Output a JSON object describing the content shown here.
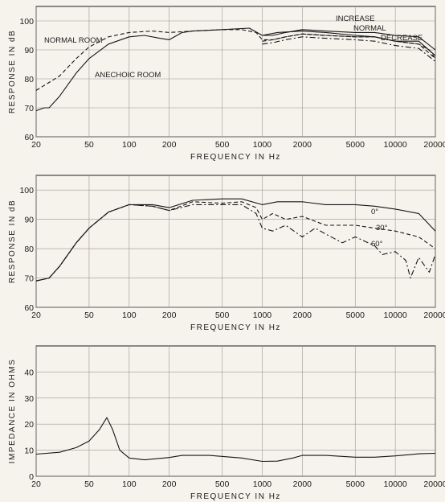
{
  "chart_data": [
    {
      "type": "line",
      "title": "",
      "xlabel": "FREQUENCY  IN  Hz",
      "ylabel": "RESPONSE  IN  dB",
      "xscale": "log",
      "xlim": [
        20,
        20000
      ],
      "ylim": [
        60,
        105
      ],
      "x_ticks": [
        20,
        50,
        100,
        200,
        500,
        1000,
        2000,
        5000,
        10000,
        20000
      ],
      "x_tick_labels": [
        "20",
        "50",
        "100",
        "200",
        "500",
        "1000",
        "2000",
        "5000",
        "10000",
        "20000"
      ],
      "y_ticks": [
        60,
        70,
        80,
        90,
        100
      ],
      "y_tick_labels": [
        "60",
        "70",
        "80",
        "90",
        "100"
      ],
      "grid": true,
      "series": [
        {
          "name": "NORMAL ROOM",
          "style": "dashed",
          "points": [
            [
              20,
              76
            ],
            [
              30,
              81
            ],
            [
              40,
              87
            ],
            [
              50,
              91
            ],
            [
              70,
              94.5
            ],
            [
              100,
              96
            ],
            [
              150,
              96.5
            ],
            [
              200,
              96
            ],
            [
              300,
              96.5
            ],
            [
              500,
              97
            ],
            [
              700,
              97
            ],
            [
              900,
              96
            ],
            [
              1000,
              93.5
            ],
            [
              1200,
              93.5
            ],
            [
              1500,
              94.5
            ],
            [
              2000,
              95.5
            ],
            [
              3000,
              95
            ],
            [
              5000,
              94.5
            ],
            [
              7000,
              94.5
            ],
            [
              10000,
              93
            ],
            [
              15000,
              92
            ],
            [
              18000,
              90
            ],
            [
              20000,
              87
            ]
          ]
        },
        {
          "name": "ANECHOIC ROOM",
          "style": "solid",
          "points": [
            [
              20,
              69
            ],
            [
              23,
              70
            ],
            [
              25,
              70
            ],
            [
              30,
              74
            ],
            [
              40,
              82
            ],
            [
              50,
              87
            ],
            [
              70,
              92
            ],
            [
              100,
              94.5
            ],
            [
              130,
              95
            ],
            [
              170,
              94
            ],
            [
              200,
              93.5
            ],
            [
              250,
              96
            ],
            [
              300,
              96.5
            ],
            [
              500,
              97
            ],
            [
              800,
              97.5
            ],
            [
              1000,
              95
            ],
            [
              1300,
              96
            ],
            [
              2000,
              96.5
            ],
            [
              3000,
              96
            ],
            [
              5000,
              95
            ],
            [
              7000,
              94.5
            ],
            [
              10000,
              93
            ],
            [
              15000,
              93
            ],
            [
              20000,
              88
            ]
          ]
        },
        {
          "name": "INCREASE",
          "style": "solid",
          "points": [
            [
              1000,
              95
            ],
            [
              1200,
              95
            ],
            [
              1500,
              96
            ],
            [
              2000,
              97
            ],
            [
              3000,
              96.5
            ],
            [
              5000,
              96
            ],
            [
              7000,
              96
            ],
            [
              10000,
              95
            ],
            [
              15000,
              94.5
            ],
            [
              20000,
              90
            ]
          ]
        },
        {
          "name": "NORMAL",
          "style": "dashed",
          "points": [
            [
              1000,
              93
            ],
            [
              1200,
              93.5
            ],
            [
              1500,
              94.5
            ],
            [
              2000,
              95.5
            ],
            [
              3000,
              95
            ],
            [
              5000,
              94.5
            ],
            [
              7000,
              94.5
            ],
            [
              10000,
              93
            ],
            [
              15000,
              92
            ],
            [
              20000,
              87
            ]
          ]
        },
        {
          "name": "DECREASE",
          "style": "dashdot",
          "points": [
            [
              1000,
              92
            ],
            [
              1200,
              92.5
            ],
            [
              1500,
              93.5
            ],
            [
              2000,
              94.5
            ],
            [
              3000,
              94
            ],
            [
              5000,
              93.5
            ],
            [
              7000,
              93
            ],
            [
              10000,
              91.5
            ],
            [
              15000,
              90.5
            ],
            [
              20000,
              86
            ]
          ]
        }
      ],
      "annotations": [
        "NORMAL ROOM",
        "ANECHOIC ROOM",
        "INCREASE",
        "NORMAL",
        "DECREASE"
      ]
    },
    {
      "type": "line",
      "title": "",
      "xlabel": "FREQUENCY  IN  Hz",
      "ylabel": "RESPONSE  IN  dB",
      "xscale": "log",
      "xlim": [
        20,
        20000
      ],
      "ylim": [
        60,
        105
      ],
      "x_ticks": [
        20,
        50,
        100,
        200,
        500,
        1000,
        2000,
        5000,
        10000,
        20000
      ],
      "x_tick_labels": [
        "20",
        "50",
        "100",
        "200",
        "500",
        "1000",
        "2000",
        "5000",
        "10000",
        "20000"
      ],
      "y_ticks": [
        60,
        70,
        80,
        90,
        100
      ],
      "y_tick_labels": [
        "60",
        "70",
        "80",
        "90",
        "100"
      ],
      "grid": true,
      "series": [
        {
          "name": "0°",
          "style": "solid",
          "points": [
            [
              20,
              69
            ],
            [
              25,
              70
            ],
            [
              30,
              74
            ],
            [
              40,
              82
            ],
            [
              50,
              87
            ],
            [
              70,
              92.5
            ],
            [
              100,
              95
            ],
            [
              150,
              95
            ],
            [
              200,
              94
            ],
            [
              300,
              96.5
            ],
            [
              500,
              97
            ],
            [
              700,
              97
            ],
            [
              1000,
              95
            ],
            [
              1300,
              96
            ],
            [
              2000,
              96
            ],
            [
              3000,
              95
            ],
            [
              5000,
              95
            ],
            [
              7000,
              94.5
            ],
            [
              10000,
              93.5
            ],
            [
              15000,
              92
            ],
            [
              20000,
              86
            ]
          ]
        },
        {
          "name": "30°",
          "style": "dashed",
          "points": [
            [
              20,
              69
            ],
            [
              25,
              70
            ],
            [
              30,
              74
            ],
            [
              40,
              82
            ],
            [
              50,
              87
            ],
            [
              70,
              92.5
            ],
            [
              100,
              95
            ],
            [
              150,
              94.5
            ],
            [
              200,
              93
            ],
            [
              300,
              96
            ],
            [
              500,
              95.5
            ],
            [
              700,
              96
            ],
            [
              900,
              94
            ],
            [
              1000,
              90
            ],
            [
              1200,
              92
            ],
            [
              1500,
              90
            ],
            [
              2000,
              91
            ],
            [
              3000,
              88
            ],
            [
              5000,
              88
            ],
            [
              7000,
              87
            ],
            [
              10000,
              86
            ],
            [
              15000,
              84
            ],
            [
              20000,
              80
            ]
          ]
        },
        {
          "name": "60°",
          "style": "dashdot",
          "points": [
            [
              20,
              69
            ],
            [
              25,
              70
            ],
            [
              30,
              74
            ],
            [
              40,
              82
            ],
            [
              50,
              87
            ],
            [
              70,
              92.5
            ],
            [
              100,
              95
            ],
            [
              150,
              94.5
            ],
            [
              200,
              93
            ],
            [
              300,
              95
            ],
            [
              500,
              95
            ],
            [
              700,
              95
            ],
            [
              900,
              92
            ],
            [
              1000,
              87
            ],
            [
              1200,
              86
            ],
            [
              1500,
              88
            ],
            [
              2000,
              84
            ],
            [
              2500,
              87
            ],
            [
              3000,
              85
            ],
            [
              4000,
              82
            ],
            [
              5000,
              84
            ],
            [
              7000,
              81
            ],
            [
              8000,
              78
            ],
            [
              10000,
              79
            ],
            [
              12000,
              76
            ],
            [
              13000,
              70
            ],
            [
              15000,
              77
            ],
            [
              18000,
              72
            ],
            [
              20000,
              78
            ]
          ]
        }
      ],
      "annotations": [
        "0°",
        "30°",
        "60°"
      ]
    },
    {
      "type": "line",
      "title": "",
      "xlabel": "FREQUENCY  IN  Hz",
      "ylabel": "IMPEDANCE  IN  OHMS",
      "xscale": "log",
      "xlim": [
        20,
        20000
      ],
      "ylim": [
        0,
        50
      ],
      "x_ticks": [
        20,
        50,
        100,
        200,
        500,
        1000,
        2000,
        5000,
        10000,
        20000
      ],
      "x_tick_labels": [
        "20",
        "50",
        "100",
        "200",
        "500",
        "1000",
        "2000",
        "5000",
        "10000",
        "20000"
      ],
      "y_ticks": [
        0,
        10,
        20,
        30,
        40
      ],
      "y_tick_labels": [
        "0",
        "10",
        "20",
        "30",
        "40"
      ],
      "grid": true,
      "series": [
        {
          "style": "solid",
          "points": [
            [
              20,
              8.5
            ],
            [
              30,
              9.2
            ],
            [
              40,
              11
            ],
            [
              50,
              13.5
            ],
            [
              60,
              18
            ],
            [
              68,
              22.5
            ],
            [
              75,
              18
            ],
            [
              85,
              10
            ],
            [
              100,
              7
            ],
            [
              130,
              6.3
            ],
            [
              200,
              7.2
            ],
            [
              250,
              8
            ],
            [
              400,
              8
            ],
            [
              700,
              7
            ],
            [
              1000,
              5.7
            ],
            [
              1300,
              5.8
            ],
            [
              1700,
              7
            ],
            [
              2000,
              8
            ],
            [
              3000,
              8
            ],
            [
              5000,
              7.3
            ],
            [
              7000,
              7.3
            ],
            [
              10000,
              7.8
            ],
            [
              15000,
              8.6
            ],
            [
              20000,
              8.8
            ]
          ]
        }
      ],
      "annotations": []
    }
  ]
}
